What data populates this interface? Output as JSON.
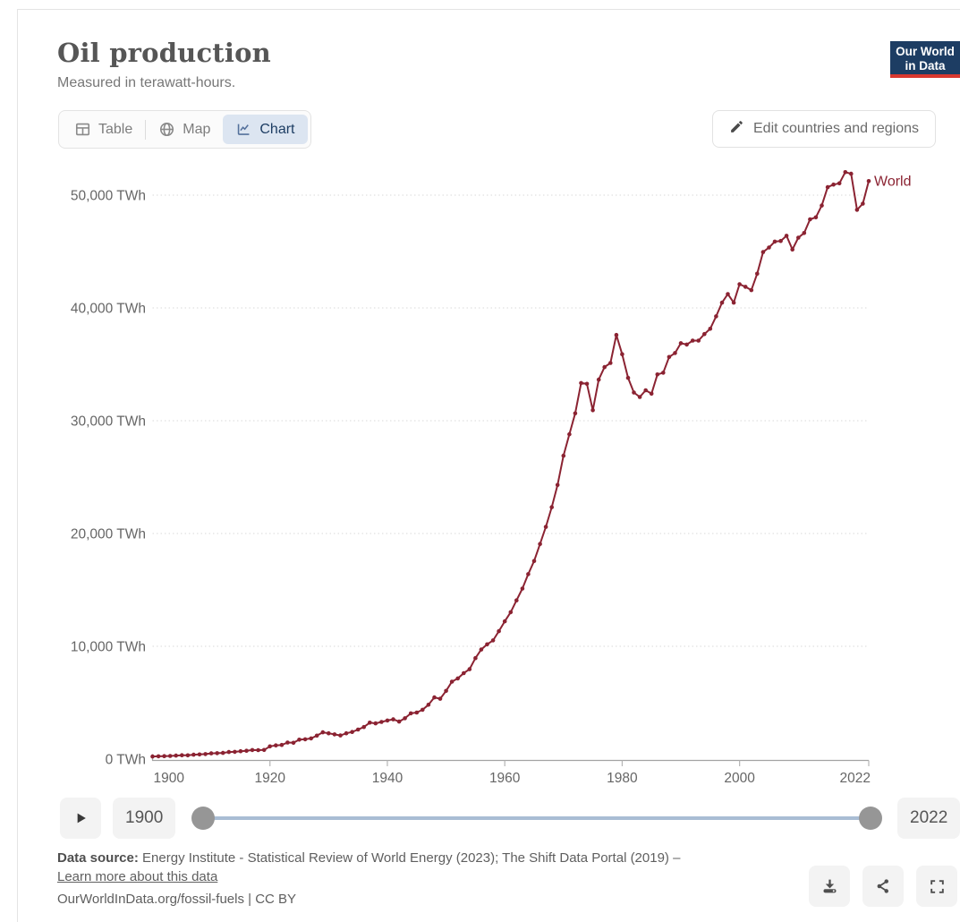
{
  "header": {
    "title": "Oil production",
    "subtitle": "Measured in terawatt-hours.",
    "logo_line1": "Our World",
    "logo_line2": "in Data"
  },
  "tabs": [
    {
      "label": "Table",
      "icon": "table-icon",
      "active": false
    },
    {
      "label": "Map",
      "icon": "globe-icon",
      "active": false
    },
    {
      "label": "Chart",
      "icon": "chart-icon",
      "active": true
    }
  ],
  "edit_button": {
    "label": "Edit countries and regions",
    "icon": "pencil-icon"
  },
  "chart_data": {
    "type": "line",
    "title": "Oil production",
    "unit": "TWh",
    "x_start": 1900,
    "x_end": 2022,
    "xlim": [
      1900,
      2022
    ],
    "ylim": [
      0,
      52500
    ],
    "x_ticks": [
      1900,
      1920,
      1940,
      1960,
      1980,
      2000,
      2022
    ],
    "y_ticks": [
      0,
      10000,
      20000,
      30000,
      40000,
      50000
    ],
    "y_tick_suffix": " TWh",
    "grid": "horizontal-dotted",
    "legend": "line-end-label",
    "series": [
      {
        "name": "World",
        "color": "#8b2332",
        "values": [
          233,
          245,
          262,
          281,
          306,
          341,
          330,
          386,
          415,
          441,
          510,
          521,
          546,
          625,
          640,
          700,
          742,
          801,
          790,
          812,
          1130,
          1218,
          1255,
          1471,
          1442,
          1720,
          1751,
          1832,
          2082,
          2372,
          2282,
          2188,
          2092,
          2282,
          2408,
          2617,
          2838,
          3233,
          3163,
          3292,
          3420,
          3524,
          3328,
          3617,
          4059,
          4129,
          4373,
          4815,
          5466,
          5350,
          6048,
          6862,
          7153,
          7618,
          7967,
          8956,
          9712,
          10178,
          10526,
          11339,
          12212,
          13026,
          14073,
          15119,
          16400,
          17561,
          19072,
          20587,
          22330,
          24300,
          26900,
          28800,
          30650,
          33340,
          33270,
          30930,
          33640,
          34750,
          35120,
          37600,
          35900,
          33800,
          32500,
          32100,
          32700,
          32400,
          34100,
          34250,
          35650,
          36000,
          36870,
          36750,
          37100,
          37100,
          37680,
          38150,
          39250,
          40470,
          41230,
          40470,
          42100,
          41870,
          41580,
          43030,
          44950,
          45360,
          45880,
          45940,
          46400,
          45180,
          46230,
          46640,
          47860,
          48030,
          49080,
          50710,
          50940,
          51050,
          52040,
          51900,
          48700,
          49250,
          51250
        ]
      }
    ]
  },
  "timeline": {
    "start_year": "1900",
    "end_year": "2022",
    "play_icon": "play-icon"
  },
  "footer": {
    "source_label": "Data source:",
    "source_text": " Energy Institute - Statistical Review of World Energy (2023); The Shift Data Portal (2019) – ",
    "learn_more": "Learn more about this data",
    "citation": "OurWorldInData.org/fossil-fuels | CC BY"
  },
  "colors": {
    "series_world": "#8b2332",
    "active_tab_bg": "#dce5f1",
    "active_tab_text": "#1d3d63",
    "logo_bg": "#1d3d63",
    "logo_red": "#d8382f",
    "slider_track": "#a9bdd4",
    "gridline": "#d9d9d9"
  }
}
